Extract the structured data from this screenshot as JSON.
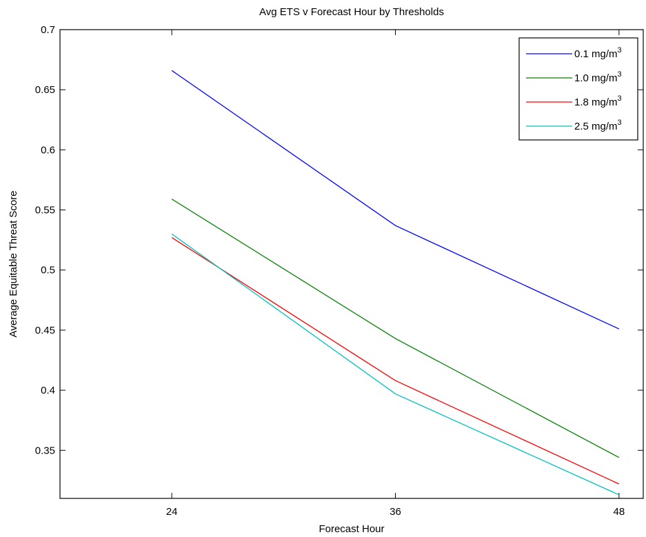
{
  "chart_data": {
    "type": "line",
    "title": "Avg ETS v Forecast Hour by Thresholds",
    "xlabel": "Forecast Hour",
    "ylabel": "Average Equitable Threat Score",
    "x": [
      24,
      36,
      48
    ],
    "xticks": [
      "24",
      "36",
      "48"
    ],
    "xlim": [
      18,
      49.3
    ],
    "ylim": [
      0.31,
      0.7
    ],
    "yticks": [
      "0.35",
      "0.4",
      "0.45",
      "0.5",
      "0.55",
      "0.6",
      "0.65",
      "0.7"
    ],
    "ytick_values": [
      0.35,
      0.4,
      0.45,
      0.5,
      0.55,
      0.6,
      0.65,
      0.7
    ],
    "grid": false,
    "legend_position": "top-right",
    "series": [
      {
        "name": "0.1 mg/m",
        "superscript": "3",
        "color": "#0000ff",
        "values": [
          0.666,
          0.537,
          0.451
        ]
      },
      {
        "name": "1.0 mg/m",
        "superscript": "3",
        "color": "#008000",
        "values": [
          0.559,
          0.443,
          0.344
        ]
      },
      {
        "name": "1.8 mg/m",
        "superscript": "3",
        "color": "#ff0000",
        "values": [
          0.527,
          0.408,
          0.322
        ]
      },
      {
        "name": "2.5 mg/m",
        "superscript": "3",
        "color": "#00bfbf",
        "values": [
          0.53,
          0.397,
          0.313
        ]
      }
    ]
  }
}
